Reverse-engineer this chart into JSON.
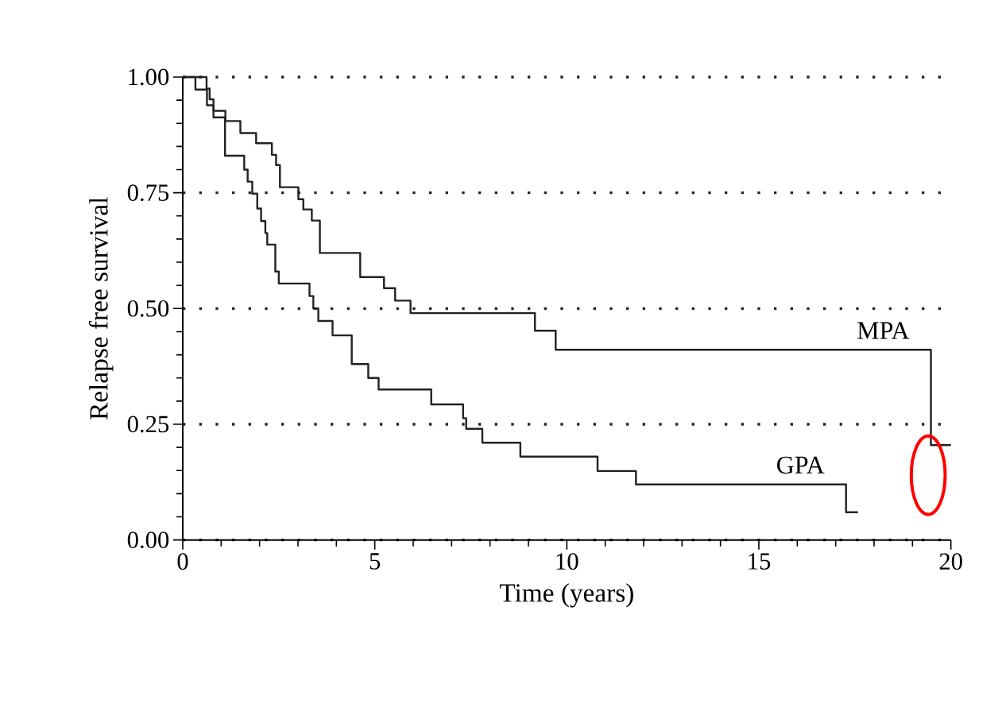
{
  "chart_data": {
    "type": "step",
    "xlabel": "Time (years)",
    "ylabel": "Relapse free survival",
    "xlim": [
      0,
      20
    ],
    "xticks": [
      0,
      5,
      10,
      15,
      20
    ],
    "ylim": [
      0,
      1
    ],
    "yticks": [
      {
        "value": 0,
        "label": "0.00"
      },
      {
        "value": 0.25,
        "label": "0.25"
      },
      {
        "value": 0.5,
        "label": "0.50"
      },
      {
        "value": 0.75,
        "label": "0.75"
      },
      {
        "value": 1,
        "label": "1.00"
      }
    ],
    "grid": "y",
    "line_style": "solid",
    "series": [
      {
        "name": "MPA",
        "color": "#222222",
        "x": [
          0,
          0.62,
          0.7,
          0.8,
          1.11,
          1.5,
          1.91,
          2.32,
          2.43,
          2.53,
          3.01,
          3.14,
          3.36,
          3.57,
          4.62,
          5.24,
          5.53,
          5.93,
          9.17,
          9.71,
          19.48,
          20.0
        ],
        "values": [
          1,
          0.975,
          0.952,
          0.927,
          0.905,
          0.879,
          0.857,
          0.832,
          0.81,
          0.762,
          0.736,
          0.714,
          0.69,
          0.62,
          0.568,
          0.544,
          0.517,
          0.49,
          0.452,
          0.411,
          0.205,
          0.205
        ]
      },
      {
        "name": "GPA",
        "color": "#222222",
        "x": [
          0,
          0.33,
          0.63,
          0.8,
          1.1,
          1.6,
          1.69,
          1.81,
          1.94,
          2.04,
          2.15,
          2.2,
          2.41,
          2.5,
          3.3,
          3.4,
          3.53,
          3.9,
          4.4,
          4.83,
          5.1,
          6.47,
          7.3,
          7.38,
          7.8,
          8.79,
          10.8,
          11.8,
          17.27,
          17.58
        ],
        "values": [
          1,
          0.973,
          0.939,
          0.913,
          0.83,
          0.8,
          0.774,
          0.748,
          0.716,
          0.689,
          0.663,
          0.638,
          0.58,
          0.554,
          0.527,
          0.5,
          0.473,
          0.442,
          0.38,
          0.35,
          0.325,
          0.293,
          0.263,
          0.24,
          0.21,
          0.18,
          0.149,
          0.12,
          0.06,
          0.06
        ]
      }
    ]
  }
}
